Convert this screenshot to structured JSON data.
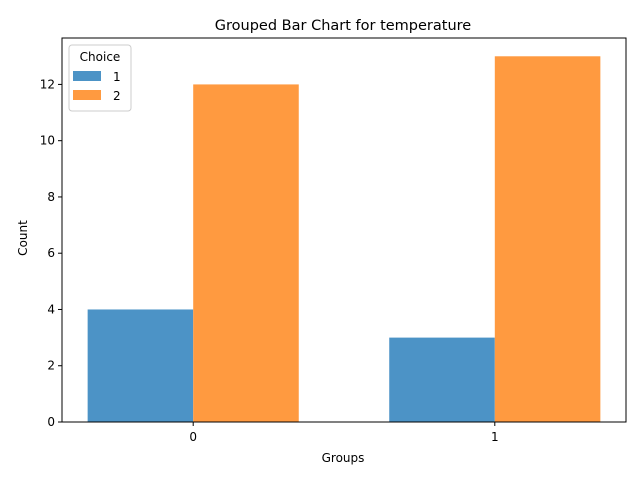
{
  "chart_data": {
    "type": "bar",
    "title": "Grouped Bar Chart for temperature",
    "xlabel": "Groups",
    "ylabel": "Count",
    "categories": [
      "0",
      "1"
    ],
    "series": [
      {
        "name": "1",
        "values": [
          4,
          3
        ],
        "color": "#4c93c6"
      },
      {
        "name": "2",
        "values": [
          12,
          13
        ],
        "color": "#ff9a40"
      }
    ],
    "ylim": [
      0,
      13.65
    ],
    "yticks": [
      0,
      2,
      4,
      6,
      8,
      10,
      12
    ],
    "legend": {
      "title": "Choice",
      "placement": "top-left"
    },
    "grid": false
  }
}
